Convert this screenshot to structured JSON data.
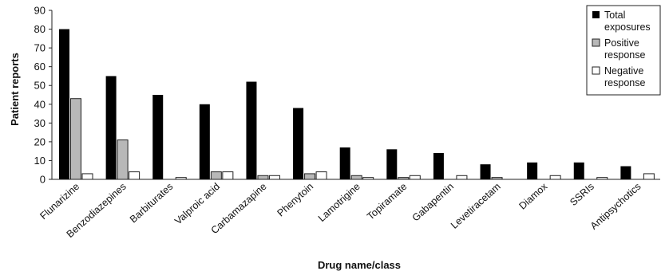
{
  "chart_data": {
    "type": "bar",
    "xlabel": "Drug name/class",
    "ylabel": "Patient reports",
    "ylim": [
      0,
      90
    ],
    "yticks": [
      0,
      10,
      20,
      30,
      40,
      50,
      60,
      70,
      80,
      90
    ],
    "grid": false,
    "legend_position": "top-right",
    "categories": [
      "Flunarizine",
      "Benzodiazepines",
      "Barbiturates",
      "Valproic acid",
      "Carbamazapine",
      "Phenytoin",
      "Lamotrigine",
      "Topiramate",
      "Gabapentin",
      "Levetiracetam",
      "Diamox",
      "SSRIs",
      "Antipsychotics"
    ],
    "series": [
      {
        "name": "Total exposures",
        "color": "#000000",
        "values": [
          80,
          55,
          45,
          40,
          52,
          38,
          17,
          16,
          14,
          8,
          9,
          9,
          7
        ]
      },
      {
        "name": "Positive response",
        "color": "#b8b8b8",
        "values": [
          43,
          21,
          0,
          4,
          2,
          3,
          2,
          1,
          0,
          1,
          0,
          0,
          0
        ]
      },
      {
        "name": "Negative response",
        "color": "#ffffff",
        "values": [
          3,
          4,
          1,
          4,
          2,
          4,
          1,
          2,
          2,
          0,
          2,
          1,
          3
        ]
      }
    ]
  }
}
